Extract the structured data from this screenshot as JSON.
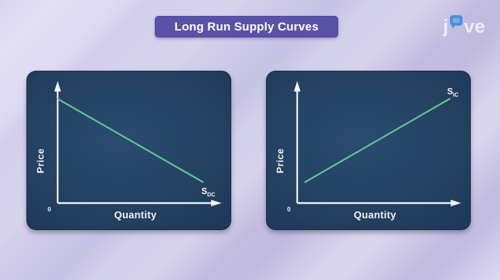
{
  "banner": {
    "text": "Long Run Supply Curves"
  },
  "logo": {
    "left_text": "j",
    "right_text": "ve",
    "bubble_icon": "speech-bubble-o",
    "bubble_color": "#4b8fd8"
  },
  "colors": {
    "banner_bg": "#5a51a8",
    "banner_text": "#ffffff",
    "panel_navy": "#23405f",
    "axis_white": "#f5f7fb",
    "curve_green": "#5fca92",
    "background_lavender": "#cdc9e8"
  },
  "chart_data": [
    {
      "type": "line",
      "panel": "left",
      "xlabel": "Quantity",
      "ylabel": "Price",
      "origin_label": "0",
      "axes_numeric": false,
      "grid": false,
      "line": {
        "name": "S_DC",
        "label_base": "S",
        "label_sub": "DC",
        "trend": "downward-sloping",
        "color": "#5fca92",
        "points_norm": [
          [
            0.0,
            0.89
          ],
          [
            0.905,
            0.18
          ]
        ]
      }
    },
    {
      "type": "line",
      "panel": "right",
      "xlabel": "Quantity",
      "ylabel": "Price",
      "origin_label": "0",
      "axes_numeric": false,
      "grid": false,
      "line": {
        "name": "S_IC",
        "label_base": "S",
        "label_sub": "IC",
        "trend": "upward-sloping",
        "color": "#5fca92",
        "points_norm": [
          [
            0.05,
            0.18
          ],
          [
            0.95,
            0.89
          ]
        ]
      }
    }
  ]
}
